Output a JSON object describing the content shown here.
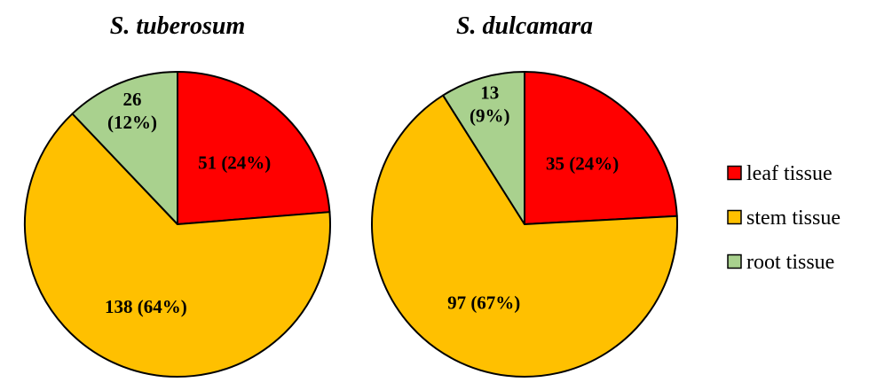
{
  "colors": {
    "leaf": "#ff0000",
    "stem": "#ffc000",
    "root": "#a9d18e",
    "outline": "#000000"
  },
  "legend": {
    "position": "right",
    "items": [
      {
        "key": "leaf",
        "label": "leaf tissue"
      },
      {
        "key": "stem",
        "label": "stem tissue"
      },
      {
        "key": "root",
        "label": "root tissue"
      }
    ]
  },
  "chart_data": [
    {
      "type": "pie",
      "title": "S. tuberosum",
      "start": "12 o'clock",
      "direction": "clockwise",
      "slices": [
        {
          "key": "leaf",
          "value": 51,
          "label_lines": [
            "51 (24%)"
          ]
        },
        {
          "key": "stem",
          "value": 138,
          "label_lines": [
            "138 (64%)"
          ]
        },
        {
          "key": "root",
          "value": 26,
          "label_lines": [
            "26",
            "(12%)"
          ]
        }
      ]
    },
    {
      "type": "pie",
      "title": "S. dulcamara",
      "start": "12 o'clock",
      "direction": "clockwise",
      "slices": [
        {
          "key": "leaf",
          "value": 35,
          "label_lines": [
            "35 (24%)"
          ]
        },
        {
          "key": "stem",
          "value": 97,
          "label_lines": [
            "97 (67%)"
          ]
        },
        {
          "key": "root",
          "value": 13,
          "label_lines": [
            "13",
            "(9%)"
          ]
        }
      ]
    }
  ]
}
